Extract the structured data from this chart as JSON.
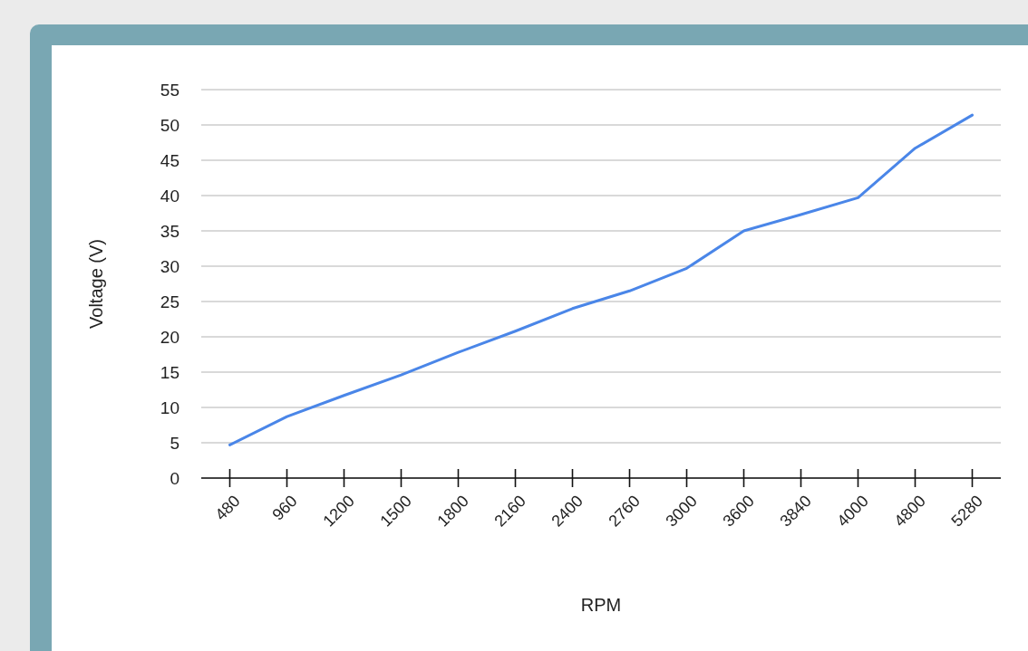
{
  "chart_data": {
    "type": "line",
    "xlabel": "RPM",
    "ylabel": "Voltage (V)",
    "categories": [
      "480",
      "960",
      "1200",
      "1500",
      "1800",
      "2160",
      "2400",
      "2760",
      "3000",
      "3600",
      "3840",
      "4000",
      "4800",
      "5280"
    ],
    "series": [
      {
        "color": "#4a86e8",
        "values": [
          4.7,
          8.7,
          11.7,
          14.6,
          17.8,
          20.8,
          24.0,
          26.5,
          29.7,
          35.0,
          37.3,
          39.7,
          46.7,
          51.4
        ]
      }
    ],
    "ylim": [
      0,
      55
    ],
    "yticks": [
      0,
      5,
      10,
      15,
      20,
      25,
      30,
      35,
      40,
      45,
      50,
      55
    ],
    "grid": "y",
    "marker": "none",
    "line_style": "solid"
  }
}
